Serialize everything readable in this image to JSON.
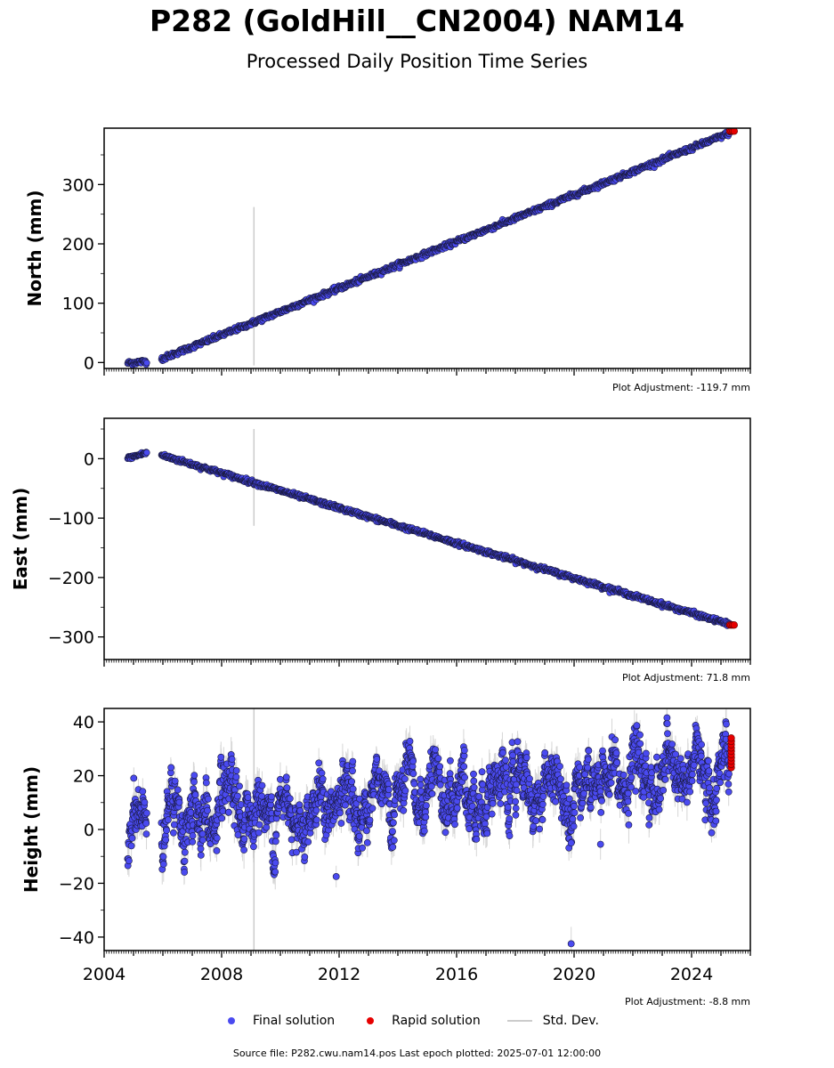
{
  "title": "P282 (GoldHill__CN2004) NAM14",
  "subtitle": "Processed Daily Position Time Series",
  "colors": {
    "final": "#4a4af0",
    "rapid": "#e60000",
    "stddev": "#bbbbbb",
    "edge": "#1a1a40"
  },
  "legend": {
    "final": "Final solution",
    "rapid": "Rapid solution",
    "std": "Std. Dev."
  },
  "footer": "Source file: P282.cwu.nam14.pos  Last epoch plotted: 2025-07-01 12:00:00",
  "chart_data": [
    {
      "type": "scatter",
      "ylabel": "North (mm)",
      "adjustment": "Plot Adjustment: -119.7 mm",
      "xlim": [
        2004.0,
        2026.0
      ],
      "ylim": [
        -10,
        395
      ],
      "yticks": [
        0,
        100,
        200,
        300
      ],
      "yticklabels": [
        "0",
        "100",
        "200",
        "300"
      ],
      "spike": {
        "x": 2009.1,
        "y0": -5,
        "y1": 262
      },
      "segments": [
        {
          "x0": 2004.8,
          "x1": 2005.45,
          "y0": -1,
          "y1": 2,
          "scatter": 2.0
        },
        {
          "x0": 2005.95,
          "x1": 2025.3,
          "y0": 6,
          "y1": 387,
          "scatter": 2.0
        }
      ],
      "rapid": {
        "x0": 2025.3,
        "x1": 2025.5,
        "y": 390
      }
    },
    {
      "type": "scatter",
      "ylabel": "East (mm)",
      "adjustment": "Plot Adjustment: 71.8 mm",
      "xlim": [
        2004.0,
        2026.0
      ],
      "ylim": [
        -338,
        68
      ],
      "yticks": [
        0,
        -100,
        -200,
        -300
      ],
      "yticklabels": [
        "0",
        "−100",
        "−200",
        "−300"
      ],
      "spike": {
        "x": 2009.1,
        "y0": -113,
        "y1": 50
      },
      "segments": [
        {
          "x0": 2004.8,
          "x1": 2005.45,
          "y0": 1,
          "y1": 10,
          "scatter": 1.5
        },
        {
          "x0": 2005.95,
          "x1": 2025.3,
          "y0": 6,
          "y1": -279,
          "scatter": 1.8
        }
      ],
      "rapid": {
        "x0": 2025.3,
        "x1": 2025.5,
        "y": -280
      }
    },
    {
      "type": "scatter",
      "ylabel": "Height (mm)",
      "adjustment": "Plot Adjustment: -8.8 mm",
      "xlim": [
        2004.0,
        2026.0
      ],
      "ylim": [
        -45,
        45
      ],
      "yticks": [
        40,
        20,
        0,
        -20,
        -40
      ],
      "yticklabels": [
        "40",
        "20",
        "0",
        "−20",
        "−40"
      ],
      "xticks": [
        2004,
        2008,
        2012,
        2016,
        2020,
        2024
      ],
      "xticklabels": [
        "2004",
        "2008",
        "2012",
        "2016",
        "2020",
        "2024"
      ],
      "spike": {
        "x": 2009.1,
        "y0": -45,
        "y1": 45
      },
      "segments": [
        {
          "x0": 2004.8,
          "x1": 2005.45,
          "y0": 0,
          "y1": 2,
          "scatter": 6.0
        },
        {
          "x0": 2005.95,
          "x1": 2025.3,
          "y0": 3,
          "y1": 22,
          "scatter": 6.5
        }
      ],
      "outliers": [
        [
          2011.9,
          -17.5
        ],
        [
          2019.9,
          -5
        ],
        [
          2020.9,
          -5.5
        ],
        [
          2019.9,
          -42.5
        ]
      ],
      "rapid": {
        "x0": 2025.3,
        "x1": 2025.5,
        "y0": 23,
        "y1": 34
      }
    }
  ]
}
